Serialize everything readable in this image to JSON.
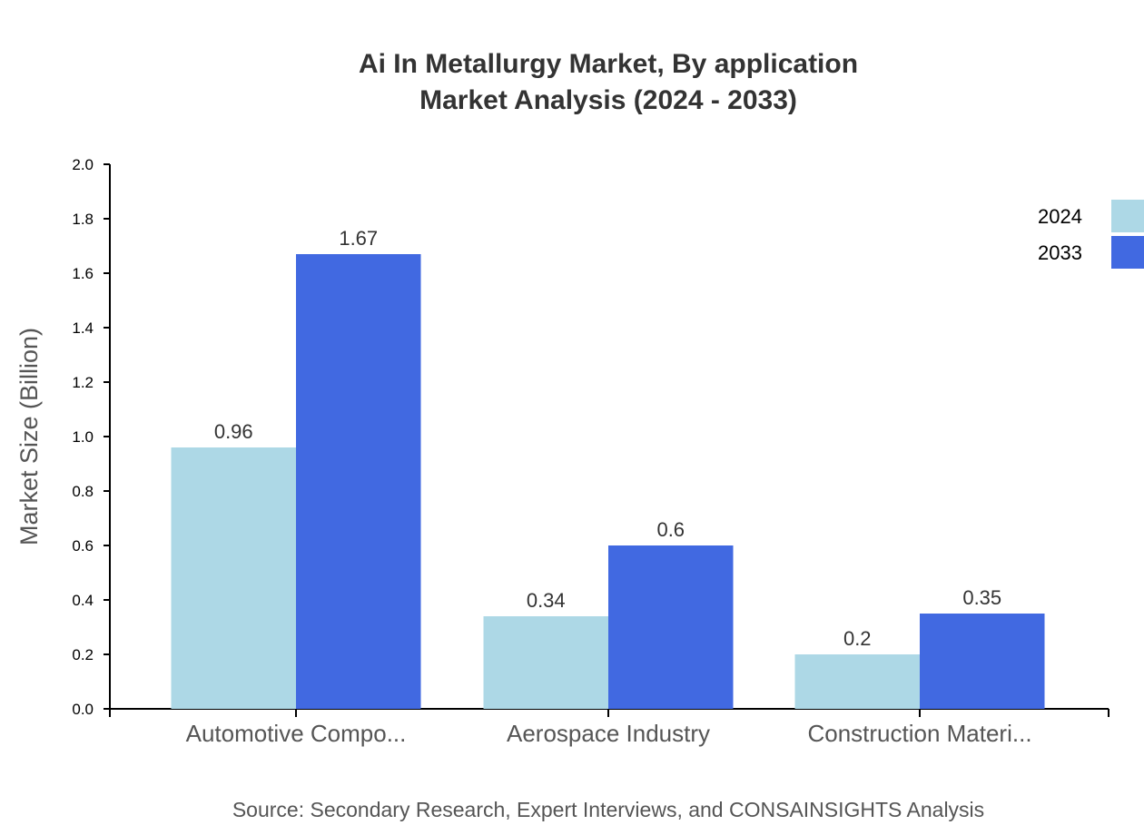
{
  "chart_data": {
    "type": "bar",
    "title": "Ai In Metallurgy Market, By application",
    "subtitle": "Market Analysis (2024 - 2033)",
    "xlabel": "",
    "ylabel": "Market Size (Billion)",
    "ylim": [
      0,
      2.0
    ],
    "yticks": [
      "0.0",
      "0.2",
      "0.4",
      "0.6",
      "0.8",
      "1.0",
      "1.2",
      "1.4",
      "1.6",
      "1.8",
      "2.0"
    ],
    "categories": [
      "Automotive Compo...",
      "Aerospace Industry",
      "Construction Materi..."
    ],
    "series": [
      {
        "name": "2024",
        "color": "#add8e6",
        "values": [
          0.96,
          0.34,
          0.2
        ]
      },
      {
        "name": "2033",
        "color": "#4169e1",
        "values": [
          1.67,
          0.6,
          0.35
        ]
      }
    ],
    "legend_position": "top-right",
    "grid": false
  },
  "source": "Source: Secondary Research, Expert Interviews, and CONSAINSIGHTS Analysis"
}
